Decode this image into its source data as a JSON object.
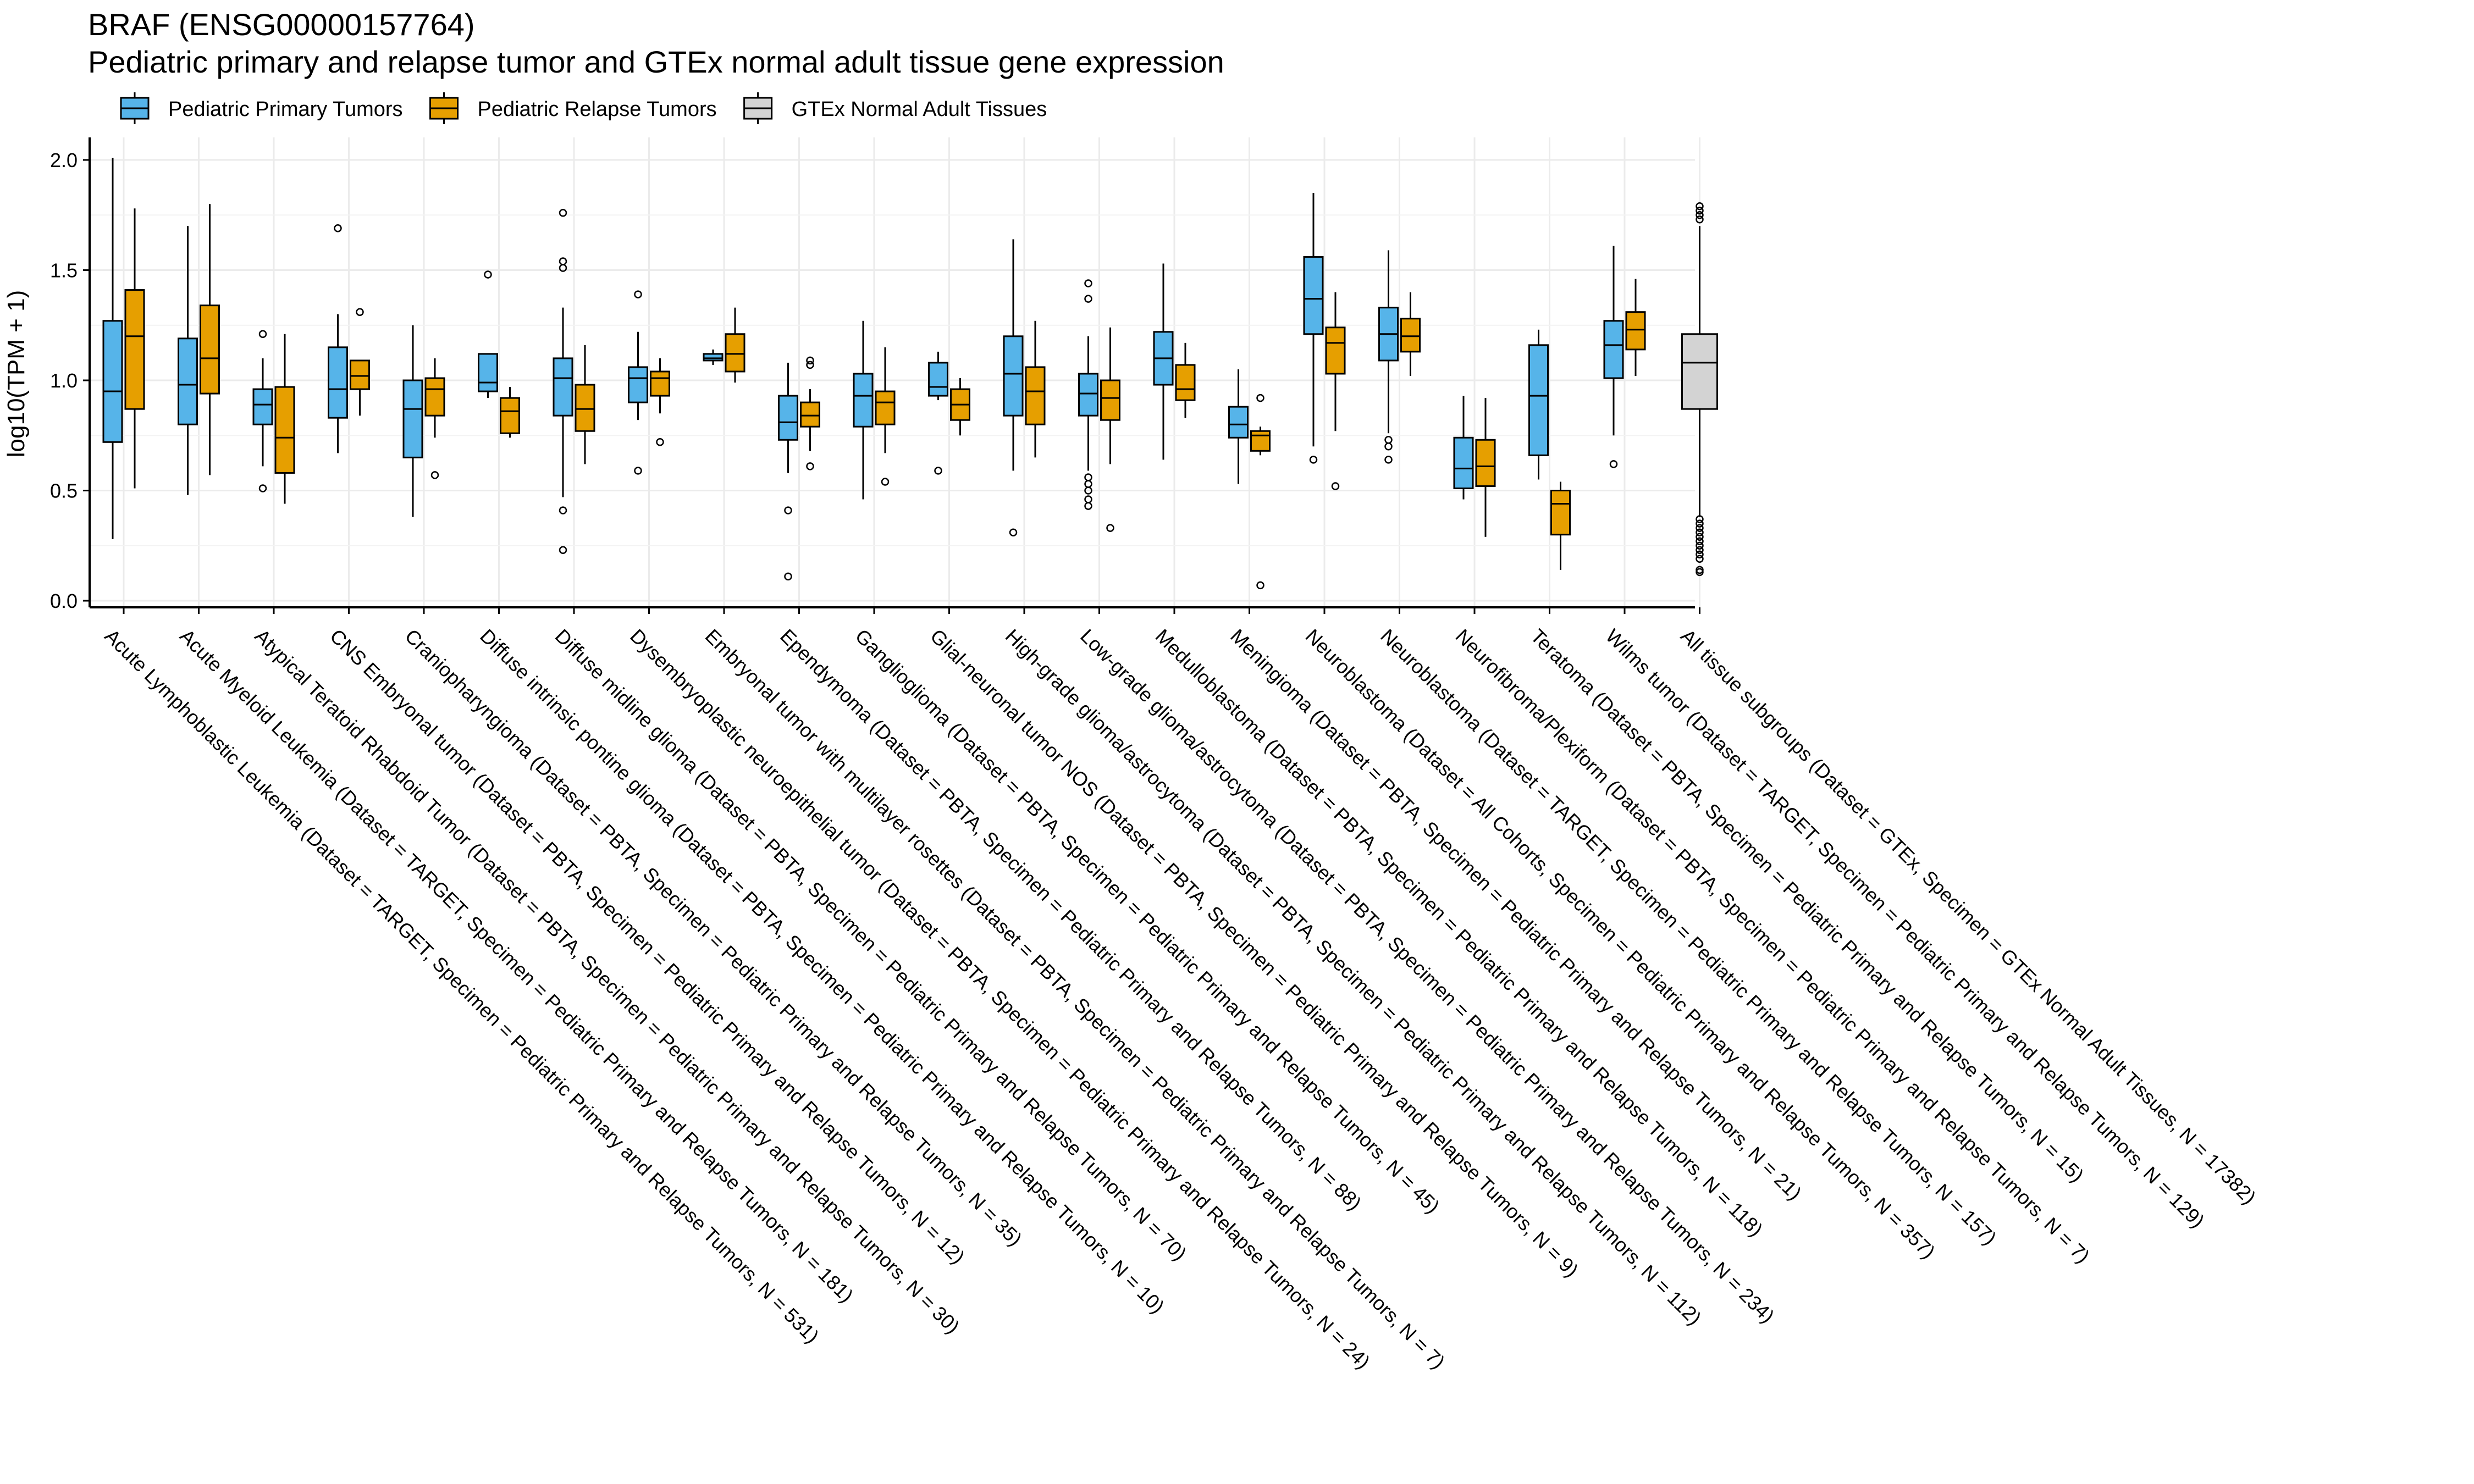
{
  "title": "BRAF (ENSG00000157764)",
  "subtitle": "Pediatric primary and relapse tumor and GTEx normal adult tissue gene expression",
  "chart_data": {
    "type": "boxplot",
    "ylabel": "log10(TPM + 1)",
    "xlabel": "",
    "ylim": [
      0,
      2.05
    ],
    "yticks": [
      "0.0",
      "0.5",
      "1.0",
      "1.5",
      "2.0"
    ],
    "grid": true,
    "legend_position": "top-left",
    "legend": [
      {
        "name": "Pediatric Primary Tumors",
        "color": "#56B4E9"
      },
      {
        "name": "Pediatric Relapse Tumors",
        "color": "#E69F00"
      },
      {
        "name": "GTEx Normal Adult Tissues",
        "color": "#D3D3D3"
      }
    ],
    "categories": [
      "Acute Lymphoblastic Leukemia  (Dataset = TARGET, Specimen = Pediatric Primary and Relapse Tumors, N = 531)",
      "Acute Myeloid Leukemia  (Dataset = TARGET, Specimen = Pediatric Primary and Relapse Tumors, N = 181)",
      "Atypical Teratoid Rhabdoid Tumor  (Dataset = PBTA, Specimen = Pediatric Primary and Relapse Tumors, N = 30)",
      "CNS Embryonal tumor  (Dataset = PBTA, Specimen = Pediatric Primary and Relapse Tumors, N = 12)",
      "Craniopharyngioma  (Dataset = PBTA, Specimen = Pediatric Primary and Relapse Tumors, N = 35)",
      "Diffuse intrinsic pontine glioma  (Dataset = PBTA, Specimen = Pediatric Primary and Relapse Tumors, N = 10)",
      "Diffuse midline glioma  (Dataset = PBTA, Specimen = Pediatric Primary and Relapse Tumors, N = 70)",
      "Dysembryoplastic neuroepithelial tumor  (Dataset = PBTA, Specimen = Pediatric Primary and Relapse Tumors, N = 24)",
      "Embryonal tumor with multilayer rosettes  (Dataset = PBTA, Specimen = Pediatric Primary and Relapse Tumors, N = 7)",
      "Ependymoma  (Dataset = PBTA, Specimen = Pediatric Primary and Relapse Tumors, N = 88)",
      "Ganglioglioma  (Dataset = PBTA, Specimen = Pediatric Primary and Relapse Tumors, N = 45)",
      "Glial-neuronal tumor NOS  (Dataset = PBTA, Specimen = Pediatric Primary and Relapse Tumors, N = 9)",
      "High-grade glioma/astrocytoma  (Dataset = PBTA, Specimen = Pediatric Primary and Relapse Tumors, N = 112)",
      "Low-grade glioma/astrocytoma  (Dataset = PBTA, Specimen = Pediatric Primary and Relapse Tumors, N = 234)",
      "Medulloblastoma  (Dataset = PBTA, Specimen = Pediatric Primary and Relapse Tumors, N = 118)",
      "Meningioma  (Dataset = PBTA, Specimen = Pediatric Primary and Relapse Tumors, N = 21)",
      "Neuroblastoma  (Dataset = All Cohorts, Specimen = Pediatric Primary and Relapse Tumors, N = 357)",
      "Neuroblastoma  (Dataset = TARGET, Specimen = Pediatric Primary and Relapse Tumors, N = 157)",
      "Neurofibroma/Plexiform  (Dataset = PBTA, Specimen = Pediatric Primary and Relapse Tumors, N = 7)",
      "Teratoma  (Dataset = PBTA, Specimen = Pediatric Primary and Relapse Tumors, N = 15)",
      "Wilms tumor  (Dataset = TARGET, Specimen = Pediatric Primary and Relapse Tumors, N = 129)",
      "All tissue subgroups  (Dataset = GTEx, Specimen = GTEx Normal Adult Tissues, N = 17382)"
    ],
    "series": [
      {
        "name": "Pediatric Primary Tumors",
        "color": "#56B4E9",
        "boxes": [
          {
            "cat": 0,
            "min": 0.28,
            "q1": 0.72,
            "median": 0.95,
            "q3": 1.27,
            "max": 2.01,
            "outliers": []
          },
          {
            "cat": 1,
            "min": 0.48,
            "q1": 0.8,
            "median": 0.98,
            "q3": 1.19,
            "max": 1.7,
            "outliers": []
          },
          {
            "cat": 2,
            "min": 0.61,
            "q1": 0.8,
            "median": 0.89,
            "q3": 0.96,
            "max": 1.1,
            "outliers": [
              1.21,
              0.51
            ]
          },
          {
            "cat": 3,
            "min": 0.67,
            "q1": 0.83,
            "median": 0.96,
            "q3": 1.15,
            "max": 1.3,
            "outliers": [
              1.69
            ]
          },
          {
            "cat": 4,
            "min": 0.38,
            "q1": 0.65,
            "median": 0.87,
            "q3": 1.0,
            "max": 1.25,
            "outliers": []
          },
          {
            "cat": 5,
            "min": 0.92,
            "q1": 0.95,
            "median": 0.99,
            "q3": 1.12,
            "max": 1.12,
            "outliers": [
              1.48
            ]
          },
          {
            "cat": 6,
            "min": 0.47,
            "q1": 0.84,
            "median": 1.01,
            "q3": 1.1,
            "max": 1.33,
            "outliers": [
              1.76,
              1.54,
              1.51,
              0.41,
              0.23
            ]
          },
          {
            "cat": 7,
            "min": 0.82,
            "q1": 0.9,
            "median": 1.01,
            "q3": 1.06,
            "max": 1.22,
            "outliers": [
              1.39,
              0.59
            ]
          },
          {
            "cat": 8,
            "min": 1.07,
            "q1": 1.09,
            "median": 1.1,
            "q3": 1.12,
            "max": 1.14,
            "outliers": []
          },
          {
            "cat": 9,
            "min": 0.58,
            "q1": 0.73,
            "median": 0.81,
            "q3": 0.93,
            "max": 1.08,
            "outliers": [
              0.41,
              0.11
            ]
          },
          {
            "cat": 10,
            "min": 0.46,
            "q1": 0.79,
            "median": 0.93,
            "q3": 1.03,
            "max": 1.27,
            "outliers": []
          },
          {
            "cat": 11,
            "min": 0.91,
            "q1": 0.93,
            "median": 0.97,
            "q3": 1.08,
            "max": 1.13,
            "outliers": [
              0.59
            ]
          },
          {
            "cat": 12,
            "min": 0.59,
            "q1": 0.84,
            "median": 1.03,
            "q3": 1.2,
            "max": 1.64,
            "outliers": [
              0.31
            ]
          },
          {
            "cat": 13,
            "min": 0.59,
            "q1": 0.84,
            "median": 0.94,
            "q3": 1.03,
            "max": 1.2,
            "outliers": [
              1.44,
              1.37,
              0.56,
              0.53,
              0.5,
              0.46,
              0.43
            ]
          },
          {
            "cat": 14,
            "min": 0.64,
            "q1": 0.98,
            "median": 1.1,
            "q3": 1.22,
            "max": 1.53,
            "outliers": []
          },
          {
            "cat": 15,
            "min": 0.53,
            "q1": 0.74,
            "median": 0.8,
            "q3": 0.88,
            "max": 1.05,
            "outliers": []
          },
          {
            "cat": 16,
            "min": 0.7,
            "q1": 1.21,
            "median": 1.37,
            "q3": 1.56,
            "max": 1.85,
            "outliers": [
              0.64
            ]
          },
          {
            "cat": 17,
            "min": 0.76,
            "q1": 1.09,
            "median": 1.21,
            "q3": 1.33,
            "max": 1.59,
            "outliers": [
              0.73,
              0.7,
              0.64
            ]
          },
          {
            "cat": 18,
            "min": 0.46,
            "q1": 0.51,
            "median": 0.6,
            "q3": 0.74,
            "max": 0.93,
            "outliers": []
          },
          {
            "cat": 19,
            "min": 0.55,
            "q1": 0.66,
            "median": 0.93,
            "q3": 1.16,
            "max": 1.23,
            "outliers": []
          },
          {
            "cat": 20,
            "min": 0.75,
            "q1": 1.01,
            "median": 1.16,
            "q3": 1.27,
            "max": 1.61,
            "outliers": [
              0.62
            ]
          }
        ]
      },
      {
        "name": "Pediatric Relapse Tumors",
        "color": "#E69F00",
        "boxes": [
          {
            "cat": 0,
            "min": 0.51,
            "q1": 0.87,
            "median": 1.2,
            "q3": 1.41,
            "max": 1.78,
            "outliers": []
          },
          {
            "cat": 1,
            "min": 0.57,
            "q1": 0.94,
            "median": 1.1,
            "q3": 1.34,
            "max": 1.8,
            "outliers": []
          },
          {
            "cat": 2,
            "min": 0.44,
            "q1": 0.58,
            "median": 0.74,
            "q3": 0.97,
            "max": 1.21,
            "outliers": []
          },
          {
            "cat": 3,
            "min": 0.84,
            "q1": 0.96,
            "median": 1.02,
            "q3": 1.09,
            "max": 1.09,
            "outliers": [
              1.31
            ]
          },
          {
            "cat": 4,
            "min": 0.74,
            "q1": 0.84,
            "median": 0.96,
            "q3": 1.01,
            "max": 1.1,
            "outliers": [
              0.57
            ]
          },
          {
            "cat": 5,
            "min": 0.74,
            "q1": 0.76,
            "median": 0.86,
            "q3": 0.92,
            "max": 0.97,
            "outliers": []
          },
          {
            "cat": 6,
            "min": 0.62,
            "q1": 0.77,
            "median": 0.87,
            "q3": 0.98,
            "max": 1.16,
            "outliers": []
          },
          {
            "cat": 7,
            "min": 0.85,
            "q1": 0.93,
            "median": 1.01,
            "q3": 1.04,
            "max": 1.1,
            "outliers": [
              0.72
            ]
          },
          {
            "cat": 8,
            "min": 0.99,
            "q1": 1.04,
            "median": 1.12,
            "q3": 1.21,
            "max": 1.33,
            "outliers": []
          },
          {
            "cat": 9,
            "min": 0.68,
            "q1": 0.79,
            "median": 0.84,
            "q3": 0.9,
            "max": 0.96,
            "outliers": [
              1.09,
              1.07,
              0.61
            ]
          },
          {
            "cat": 10,
            "min": 0.67,
            "q1": 0.8,
            "median": 0.9,
            "q3": 0.95,
            "max": 1.15,
            "outliers": [
              0.54
            ]
          },
          {
            "cat": 11,
            "min": 0.75,
            "q1": 0.82,
            "median": 0.89,
            "q3": 0.96,
            "max": 1.01,
            "outliers": []
          },
          {
            "cat": 12,
            "min": 0.65,
            "q1": 0.8,
            "median": 0.95,
            "q3": 1.06,
            "max": 1.27,
            "outliers": []
          },
          {
            "cat": 13,
            "min": 0.62,
            "q1": 0.82,
            "median": 0.92,
            "q3": 1.0,
            "max": 1.24,
            "outliers": [
              0.33
            ]
          },
          {
            "cat": 14,
            "min": 0.83,
            "q1": 0.91,
            "median": 0.96,
            "q3": 1.07,
            "max": 1.17,
            "outliers": []
          },
          {
            "cat": 15,
            "min": 0.66,
            "q1": 0.68,
            "median": 0.75,
            "q3": 0.77,
            "max": 0.79,
            "outliers": [
              0.92,
              0.07
            ]
          },
          {
            "cat": 16,
            "min": 0.77,
            "q1": 1.03,
            "median": 1.17,
            "q3": 1.24,
            "max": 1.4,
            "outliers": [
              0.52
            ]
          },
          {
            "cat": 17,
            "min": 1.02,
            "q1": 1.13,
            "median": 1.2,
            "q3": 1.28,
            "max": 1.4,
            "outliers": []
          },
          {
            "cat": 18,
            "min": 0.29,
            "q1": 0.52,
            "median": 0.61,
            "q3": 0.73,
            "max": 0.92,
            "outliers": []
          },
          {
            "cat": 19,
            "min": 0.14,
            "q1": 0.3,
            "median": 0.44,
            "q3": 0.5,
            "max": 0.54,
            "outliers": []
          },
          {
            "cat": 20,
            "min": 1.02,
            "q1": 1.14,
            "median": 1.23,
            "q3": 1.31,
            "max": 1.46,
            "outliers": []
          }
        ]
      },
      {
        "name": "GTEx Normal Adult Tissues",
        "color": "#D3D3D3",
        "boxes": [
          {
            "cat": 21,
            "min": 0.38,
            "q1": 0.87,
            "median": 1.08,
            "q3": 1.21,
            "max": 1.7,
            "outliers": [
              1.79,
              1.77,
              1.75,
              1.73,
              0.37,
              0.35,
              0.33,
              0.31,
              0.29,
              0.27,
              0.25,
              0.23,
              0.21,
              0.19,
              0.14,
              0.13
            ]
          }
        ]
      }
    ]
  }
}
